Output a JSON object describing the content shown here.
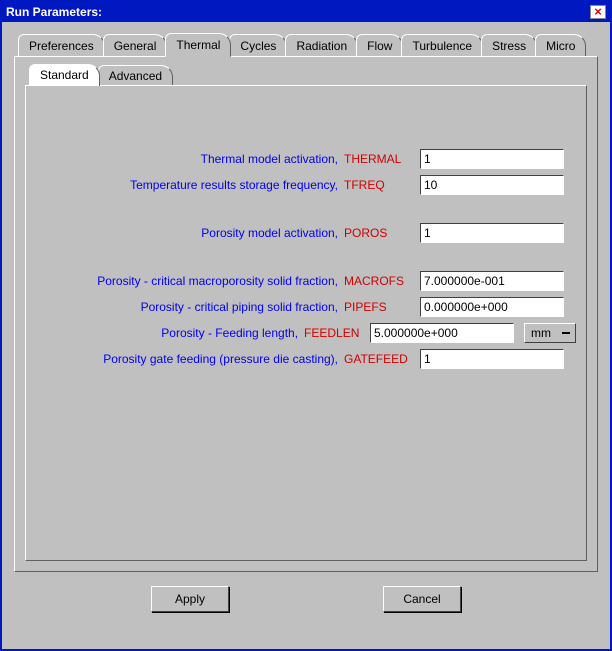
{
  "window": {
    "title": "Run Parameters:"
  },
  "tabs": {
    "items": [
      "Preferences",
      "General",
      "Thermal",
      "Cycles",
      "Radiation",
      "Flow",
      "Turbulence",
      "Stress",
      "Micro"
    ],
    "active_index": 2
  },
  "subtabs": {
    "items": [
      "Standard",
      "Advanced"
    ],
    "active_index": 0
  },
  "fields": [
    {
      "label": "Thermal model activation,",
      "code": "THERMAL",
      "value": "1"
    },
    {
      "label": "Temperature results storage frequency,",
      "code": "TFREQ",
      "value": "10"
    },
    {
      "label": "Porosity model activation,",
      "code": "POROS",
      "value": "1"
    },
    {
      "label": "Porosity - critical macroporosity solid fraction,",
      "code": "MACROFS",
      "value": "7.000000e-001"
    },
    {
      "label": "Porosity - critical piping solid fraction,",
      "code": "PIPEFS",
      "value": "0.000000e+000"
    },
    {
      "label": "Porosity - Feeding length,",
      "code": "FEEDLEN",
      "value": "5.000000e+000",
      "unit": "mm"
    },
    {
      "label": "Porosity gate feeding (pressure die casting),",
      "code": "GATEFEED",
      "value": "1"
    }
  ],
  "buttons": {
    "apply": "Apply",
    "cancel": "Cancel"
  },
  "colors": {
    "titlebar_bg": "#0018c0",
    "body_bg": "#c0c0c0",
    "label_color": "#0000ee",
    "code_color": "#d00000"
  }
}
